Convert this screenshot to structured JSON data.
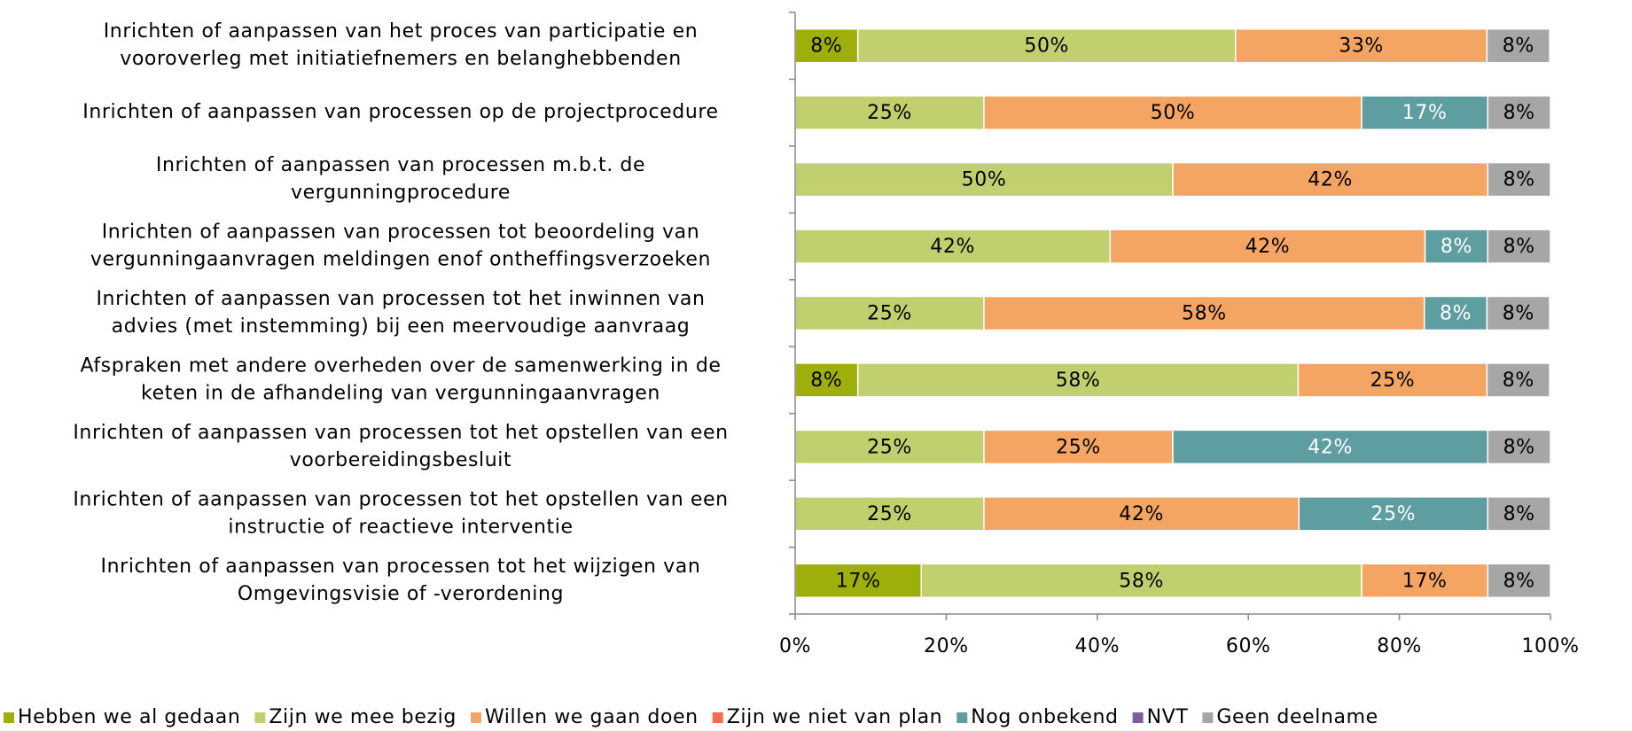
{
  "chart_data": {
    "type": "stacked-bar-horizontal",
    "categories": [
      [
        "Inrichten of aanpassen van het proces van participatie en",
        "vooroverleg met initiatiefnemers en belanghebbenden"
      ],
      [
        "Inrichten of aanpassen van processen op de projectprocedure"
      ],
      [
        "Inrichten of aanpassen van processen m.b.t. de",
        "vergunningprocedure"
      ],
      [
        "Inrichten of aanpassen van processen tot beoordeling van",
        "vergunningaanvragen meldingen enof ontheffingsverzoeken"
      ],
      [
        "Inrichten of aanpassen van processen tot het inwinnen van",
        "advies (met instemming) bij een meervoudige aanvraag"
      ],
      [
        "Afspraken met andere overheden over de samenwerking in de",
        "keten in de afhandeling van vergunningaanvragen"
      ],
      [
        "Inrichten of aanpassen van processen tot het opstellen van een",
        "voorbereidingsbesluit"
      ],
      [
        "Inrichten of aanpassen van processen tot het opstellen van een",
        "instructie of reactieve interventie"
      ],
      [
        "Inrichten of aanpassen van processen tot het wijzigen van",
        "Omgevingsvisie of -verordening"
      ]
    ],
    "series": [
      {
        "name": "Hebben we al gedaan",
        "color": "#9eae0a",
        "label_color": "#000000",
        "values": [
          8.3,
          null,
          null,
          null,
          null,
          8.3,
          null,
          null,
          16.7
        ],
        "value_labels": [
          "8%",
          null,
          null,
          null,
          null,
          "8%",
          null,
          null,
          "17%"
        ]
      },
      {
        "name": "Zijn we mee bezig",
        "color": "#c1cf6e",
        "label_color": "#000000",
        "values": [
          50,
          25,
          50,
          41.7,
          25,
          58.3,
          25,
          25,
          58.3
        ],
        "value_labels": [
          "50%",
          "25%",
          "50%",
          "42%",
          "25%",
          "58%",
          "25%",
          "25%",
          "58%"
        ]
      },
      {
        "name": "Willen we gaan doen",
        "color": "#f4a563",
        "label_color": "#000000",
        "values": [
          33.3,
          50,
          41.7,
          41.7,
          58.3,
          25,
          25,
          41.7,
          16.7
        ],
        "value_labels": [
          "33%",
          "50%",
          "42%",
          "42%",
          "58%",
          "25%",
          "25%",
          "42%",
          "17%"
        ]
      },
      {
        "name": "Zijn we niet van plan",
        "color": "#f26d50",
        "label_color": "#000000",
        "values": [
          null,
          null,
          null,
          null,
          null,
          null,
          null,
          null,
          null
        ],
        "value_labels": [
          null,
          null,
          null,
          null,
          null,
          null,
          null,
          null,
          null
        ]
      },
      {
        "name": "Nog onbekend",
        "color": "#5f9ea0",
        "label_color": "#ffffff",
        "values": [
          null,
          16.7,
          null,
          8.3,
          8.3,
          null,
          41.7,
          25,
          null
        ],
        "value_labels": [
          null,
          "17%",
          null,
          "8%",
          "8%",
          null,
          "42%",
          "25%",
          null
        ]
      },
      {
        "name": "NVT",
        "color": "#7b5e9e",
        "label_color": "#000000",
        "values": [
          null,
          null,
          null,
          null,
          null,
          null,
          null,
          null,
          null
        ],
        "value_labels": [
          null,
          null,
          null,
          null,
          null,
          null,
          null,
          null,
          null
        ]
      },
      {
        "name": "Geen deelname",
        "color": "#a6a6a6",
        "label_color": "#000000",
        "values": [
          8.3,
          8.3,
          8.3,
          8.3,
          8.3,
          8.3,
          8.3,
          8.3,
          8.3
        ],
        "value_labels": [
          "8%",
          "8%",
          "8%",
          "8%",
          "8%",
          "8%",
          "8%",
          "8%",
          "8%"
        ]
      }
    ],
    "xlim": [
      0,
      100
    ],
    "xticks": [
      {
        "value": 0,
        "label": "0%"
      },
      {
        "value": 20,
        "label": "20%"
      },
      {
        "value": 40,
        "label": "40%"
      },
      {
        "value": 60,
        "label": "60%"
      },
      {
        "value": 80,
        "label": "80%"
      },
      {
        "value": 100,
        "label": "100%"
      }
    ],
    "legend": "bottom"
  }
}
